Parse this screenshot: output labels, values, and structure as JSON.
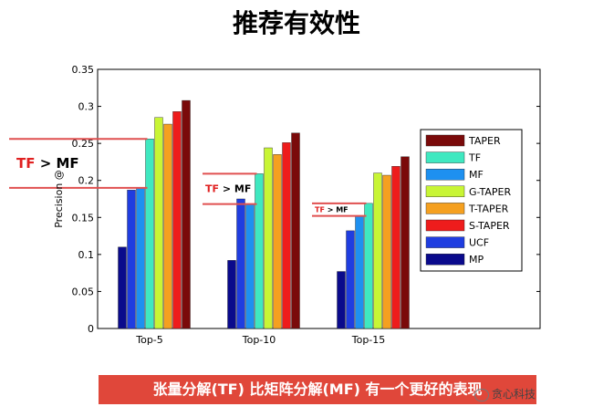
{
  "page": {
    "title": "推荐有效性"
  },
  "chart_data": {
    "type": "bar",
    "title": "",
    "xlabel": "",
    "ylabel": "Precision @",
    "ylim": [
      0,
      0.35
    ],
    "yticks": [
      "0",
      "0.05",
      "0.1",
      "0.15",
      "0.2",
      "0.25",
      "0.3",
      "0.35"
    ],
    "categories": [
      "Top-5",
      "Top-10",
      "Top-15"
    ],
    "series": [
      {
        "name": "MP",
        "color": "#0a0a8c",
        "values": [
          0.11,
          0.092,
          0.077
        ]
      },
      {
        "name": "UCF",
        "color": "#1f3de0",
        "values": [
          0.187,
          0.175,
          0.132
        ]
      },
      {
        "name": "MF",
        "color": "#1e90f0",
        "values": [
          0.19,
          0.168,
          0.152
        ]
      },
      {
        "name": "TF",
        "color": "#3fe8c0",
        "values": [
          0.256,
          0.209,
          0.169
        ]
      },
      {
        "name": "G-TAPER",
        "color": "#c8f535",
        "values": [
          0.285,
          0.244,
          0.21
        ]
      },
      {
        "name": "T-TAPER",
        "color": "#f5a020",
        "values": [
          0.276,
          0.235,
          0.207
        ]
      },
      {
        "name": "S-TAPER",
        "color": "#ee1c1c",
        "values": [
          0.293,
          0.251,
          0.219
        ]
      },
      {
        "name": "TAPER",
        "color": "#7a0a0a",
        "values": [
          0.308,
          0.264,
          0.232
        ]
      }
    ],
    "legend": {
      "placement": "right",
      "order": [
        "TAPER",
        "TF",
        "MF",
        "G-TAPER",
        "T-TAPER",
        "S-TAPER",
        "UCF",
        "MP"
      ]
    },
    "annotations": [
      {
        "label_a": "TF",
        "op": ">",
        "label_b": "MF",
        "group": "Top-5",
        "upper": 0.256,
        "lower": 0.19
      },
      {
        "label_a": "TF",
        "op": ">",
        "label_b": "MF",
        "group": "Top-10",
        "upper": 0.209,
        "lower": 0.168
      },
      {
        "label_a": "TF",
        "op": ">",
        "label_b": "MF",
        "group": "Top-15",
        "upper": 0.169,
        "lower": 0.152
      }
    ],
    "grid": false
  },
  "banner": {
    "text": "张量分解(TF) 比矩阵分解(MF) 有一个更好的表现"
  },
  "watermark": {
    "text": "贪心科技"
  },
  "colors": {
    "banner_bg": "#e0473a",
    "annotation_line": "#e05050",
    "annotation_red": "#e02020"
  }
}
